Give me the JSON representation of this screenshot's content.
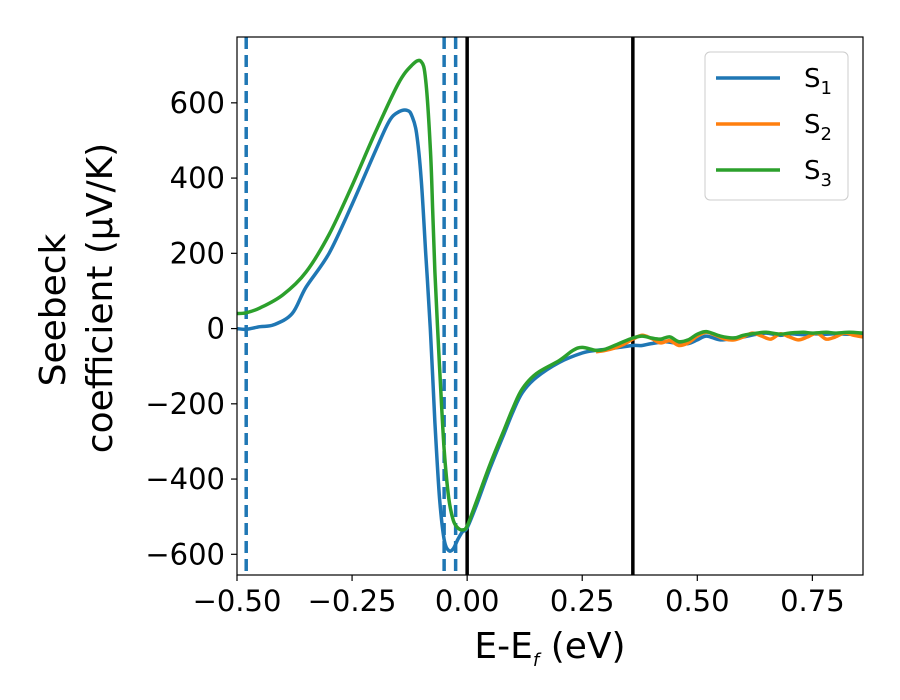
{
  "chart_data": {
    "type": "line",
    "xlabel": {
      "main": "E-E",
      "sub": "f",
      "unit": " (eV)"
    },
    "ylabel": {
      "line1": "Seebeck",
      "line2": "coefficient  (μV/K)"
    },
    "xlim": [
      -0.5,
      0.86
    ],
    "ylim": [
      -655,
      775
    ],
    "xticks": [
      -0.5,
      -0.25,
      0.0,
      0.25,
      0.5,
      0.75
    ],
    "xtick_labels": [
      "−0.50",
      "−0.25",
      "0.00",
      "0.25",
      "0.50",
      "0.75"
    ],
    "yticks": [
      -600,
      -400,
      -200,
      0,
      200,
      400,
      600
    ],
    "ytick_labels": [
      "−600",
      "−400",
      "−200",
      "0",
      "200",
      "400",
      "600"
    ],
    "grid": false,
    "legend_position": "top-right",
    "vlines": [
      {
        "x": -0.48,
        "style": "dashed",
        "color": "#1f77b4"
      },
      {
        "x": -0.05,
        "style": "dashed",
        "color": "#1f77b4"
      },
      {
        "x": -0.025,
        "style": "dashed",
        "color": "#1f77b4"
      },
      {
        "x": 0.0,
        "style": "solid",
        "color": "#000000"
      },
      {
        "x": 0.36,
        "style": "solid",
        "color": "#000000"
      }
    ],
    "series": [
      {
        "name": "S",
        "sub": "1",
        "color": "#1f77b4",
        "x": [
          -0.5,
          -0.48,
          -0.45,
          -0.42,
          -0.38,
          -0.35,
          -0.3,
          -0.25,
          -0.2,
          -0.17,
          -0.15,
          -0.13,
          -0.12,
          -0.11,
          -0.1,
          -0.09,
          -0.08,
          -0.07,
          -0.06,
          -0.05,
          -0.04,
          -0.03,
          -0.02,
          -0.01,
          0.0,
          0.02,
          0.05,
          0.08,
          0.1,
          0.12,
          0.15,
          0.2,
          0.25,
          0.28,
          0.3,
          0.33,
          0.36,
          0.38,
          0.4,
          0.43,
          0.45,
          0.48,
          0.5,
          0.52,
          0.55,
          0.58,
          0.6,
          0.63,
          0.65,
          0.68,
          0.7,
          0.73,
          0.75,
          0.78,
          0.8,
          0.83,
          0.86
        ],
        "y": [
          0,
          -2,
          5,
          10,
          40,
          110,
          200,
          330,
          470,
          550,
          575,
          580,
          565,
          520,
          400,
          200,
          0,
          -250,
          -450,
          -560,
          -590,
          -585,
          -560,
          -540,
          -530,
          -470,
          -370,
          -280,
          -220,
          -170,
          -130,
          -90,
          -65,
          -58,
          -55,
          -50,
          -45,
          -45,
          -40,
          -35,
          -38,
          -40,
          -30,
          -20,
          -30,
          -25,
          -22,
          -15,
          -12,
          -18,
          -14,
          -16,
          -14,
          -15,
          -14,
          -15,
          -15
        ]
      },
      {
        "name": "S",
        "sub": "2",
        "color": "#ff7f0e",
        "x": [
          0.28,
          0.3,
          0.32,
          0.34,
          0.36,
          0.38,
          0.4,
          0.42,
          0.44,
          0.46,
          0.48,
          0.5,
          0.52,
          0.54,
          0.56,
          0.58,
          0.6,
          0.62,
          0.64,
          0.66,
          0.68,
          0.7,
          0.72,
          0.74,
          0.76,
          0.78,
          0.8,
          0.82,
          0.84,
          0.86
        ],
        "y": [
          -62,
          -58,
          -52,
          -42,
          -28,
          -18,
          -26,
          -38,
          -32,
          -45,
          -38,
          -20,
          -10,
          -18,
          -28,
          -30,
          -22,
          -12,
          -20,
          -28,
          -14,
          -22,
          -30,
          -22,
          -12,
          -28,
          -22,
          -12,
          -18,
          -22
        ]
      },
      {
        "name": "S",
        "sub": "3",
        "color": "#2ca02c",
        "x": [
          -0.5,
          -0.48,
          -0.45,
          -0.4,
          -0.35,
          -0.3,
          -0.25,
          -0.2,
          -0.15,
          -0.12,
          -0.1,
          -0.09,
          -0.08,
          -0.075,
          -0.07,
          -0.06,
          -0.05,
          -0.04,
          -0.03,
          -0.02,
          -0.01,
          0.0,
          0.02,
          0.05,
          0.08,
          0.1,
          0.12,
          0.15,
          0.2,
          0.23,
          0.25,
          0.28,
          0.3,
          0.33,
          0.36,
          0.38,
          0.4,
          0.42,
          0.44,
          0.46,
          0.48,
          0.5,
          0.52,
          0.55,
          0.58,
          0.6,
          0.63,
          0.65,
          0.68,
          0.7,
          0.73,
          0.75,
          0.78,
          0.8,
          0.83,
          0.86
        ],
        "y": [
          40,
          42,
          55,
          90,
          150,
          250,
          380,
          520,
          650,
          700,
          710,
          660,
          480,
          320,
          150,
          -100,
          -320,
          -450,
          -510,
          -530,
          -535,
          -525,
          -460,
          -360,
          -270,
          -210,
          -160,
          -120,
          -85,
          -58,
          -50,
          -58,
          -55,
          -40,
          -25,
          -20,
          -25,
          -28,
          -22,
          -35,
          -30,
          -15,
          -8,
          -20,
          -25,
          -18,
          -12,
          -10,
          -15,
          -12,
          -10,
          -12,
          -10,
          -12,
          -10,
          -12
        ]
      }
    ]
  }
}
